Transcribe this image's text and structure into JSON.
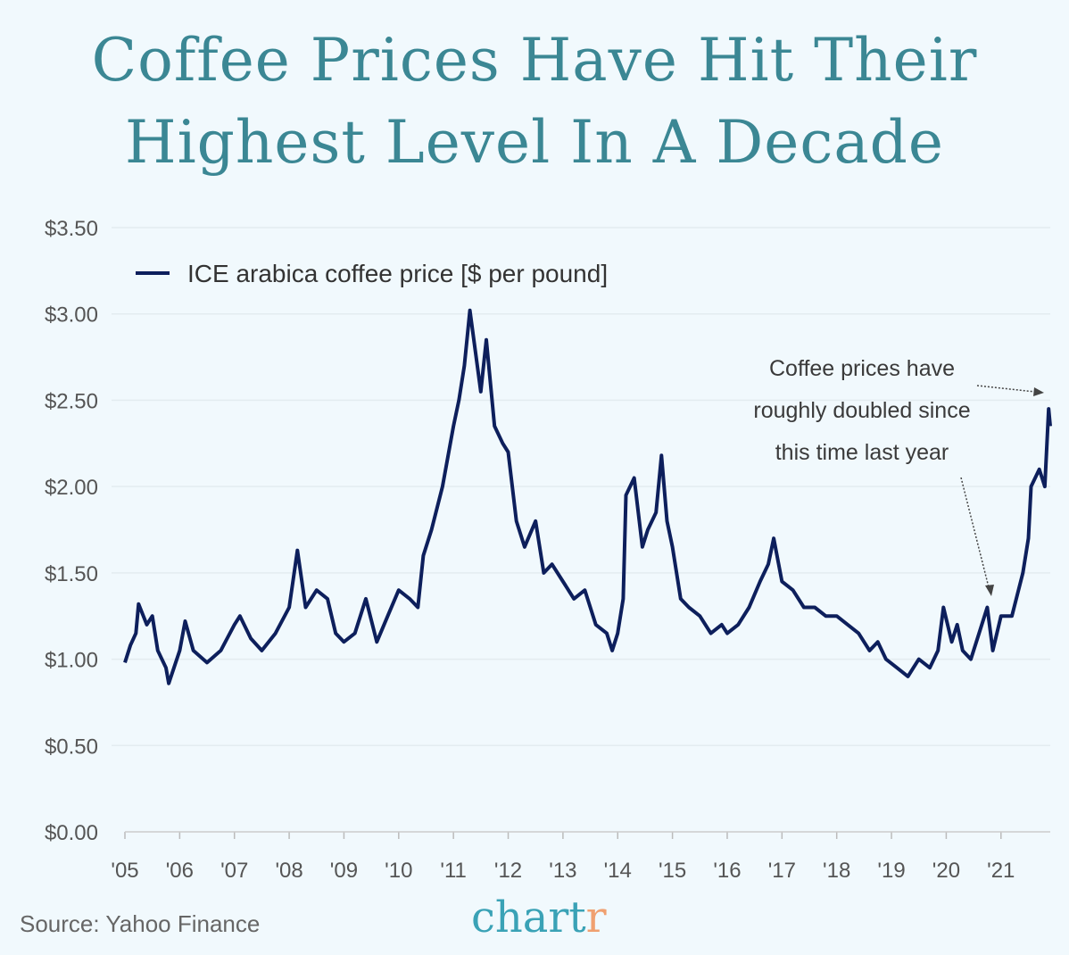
{
  "title_lines": [
    "Coffee Prices Have Hit Their",
    "Highest Level In A Decade"
  ],
  "source": "Source: Yahoo Finance",
  "logo": {
    "main": "chart",
    "accent": "r"
  },
  "colors": {
    "line": "#0d1f5c",
    "title": "#3b8794",
    "background": "#f1f9fd",
    "logo_main": "#3aa2b6",
    "logo_accent": "#f0a070"
  },
  "chart_data": {
    "type": "line",
    "title": "Coffee Prices Have Hit Their Highest Level In A Decade",
    "xlabel": "",
    "ylabel": "",
    "ylim": [
      0,
      3.5
    ],
    "xlim": [
      2005,
      2021.9
    ],
    "grid": true,
    "legend_position": "top-left",
    "y_ticks": [
      "$0.00",
      "$0.50",
      "$1.00",
      "$1.50",
      "$2.00",
      "$2.50",
      "$3.00",
      "$3.50"
    ],
    "x_ticks": [
      "'05",
      "'06",
      "'07",
      "'08",
      "'09",
      "'10",
      "'11",
      "'12",
      "'13",
      "'14",
      "'15",
      "'16",
      "'17",
      "'18",
      "'19",
      "'20",
      "'21"
    ],
    "annotation": [
      "Coffee prices have",
      "roughly doubled since",
      "this time last year"
    ],
    "series": [
      {
        "name": "ICE arabica coffee price [$ per pound]",
        "x": [
          2005.0,
          2005.1,
          2005.2,
          2005.25,
          2005.4,
          2005.5,
          2005.6,
          2005.75,
          2005.8,
          2006.0,
          2006.1,
          2006.25,
          2006.5,
          2006.75,
          2007.0,
          2007.1,
          2007.3,
          2007.5,
          2007.75,
          2008.0,
          2008.15,
          2008.3,
          2008.5,
          2008.7,
          2008.85,
          2009.0,
          2009.2,
          2009.4,
          2009.6,
          2009.8,
          2010.0,
          2010.2,
          2010.35,
          2010.45,
          2010.6,
          2010.8,
          2011.0,
          2011.1,
          2011.2,
          2011.3,
          2011.5,
          2011.6,
          2011.75,
          2011.9,
          2012.0,
          2012.15,
          2012.3,
          2012.5,
          2012.65,
          2012.8,
          2013.0,
          2013.2,
          2013.4,
          2013.6,
          2013.8,
          2013.9,
          2014.0,
          2014.1,
          2014.15,
          2014.3,
          2014.45,
          2014.55,
          2014.7,
          2014.8,
          2014.9,
          2015.0,
          2015.15,
          2015.3,
          2015.5,
          2015.7,
          2015.9,
          2016.0,
          2016.2,
          2016.4,
          2016.6,
          2016.75,
          2016.85,
          2017.0,
          2017.2,
          2017.4,
          2017.6,
          2017.8,
          2018.0,
          2018.2,
          2018.4,
          2018.6,
          2018.75,
          2018.9,
          2019.1,
          2019.3,
          2019.4,
          2019.5,
          2019.7,
          2019.85,
          2019.95,
          2020.1,
          2020.2,
          2020.3,
          2020.45,
          2020.6,
          2020.75,
          2020.85,
          2021.0,
          2021.2,
          2021.4,
          2021.5,
          2021.55,
          2021.7,
          2021.8,
          2021.87,
          2021.9
        ],
        "y": [
          0.98,
          1.08,
          1.15,
          1.32,
          1.2,
          1.25,
          1.05,
          0.95,
          0.86,
          1.05,
          1.22,
          1.05,
          0.98,
          1.05,
          1.2,
          1.25,
          1.12,
          1.05,
          1.15,
          1.3,
          1.63,
          1.3,
          1.4,
          1.35,
          1.15,
          1.1,
          1.15,
          1.35,
          1.1,
          1.25,
          1.4,
          1.35,
          1.3,
          1.6,
          1.75,
          2.0,
          2.35,
          2.5,
          2.7,
          3.02,
          2.55,
          2.85,
          2.35,
          2.25,
          2.2,
          1.8,
          1.65,
          1.8,
          1.5,
          1.55,
          1.45,
          1.35,
          1.4,
          1.2,
          1.15,
          1.05,
          1.15,
          1.35,
          1.95,
          2.05,
          1.65,
          1.75,
          1.85,
          2.18,
          1.8,
          1.65,
          1.35,
          1.3,
          1.25,
          1.15,
          1.2,
          1.15,
          1.2,
          1.3,
          1.45,
          1.55,
          1.7,
          1.45,
          1.4,
          1.3,
          1.3,
          1.25,
          1.25,
          1.2,
          1.15,
          1.05,
          1.1,
          1.0,
          0.95,
          0.9,
          0.95,
          1.0,
          0.95,
          1.05,
          1.3,
          1.1,
          1.2,
          1.05,
          1.0,
          1.15,
          1.3,
          1.05,
          1.25,
          1.25,
          1.5,
          1.7,
          2.0,
          2.1,
          2.0,
          2.45,
          2.35
        ]
      }
    ]
  }
}
